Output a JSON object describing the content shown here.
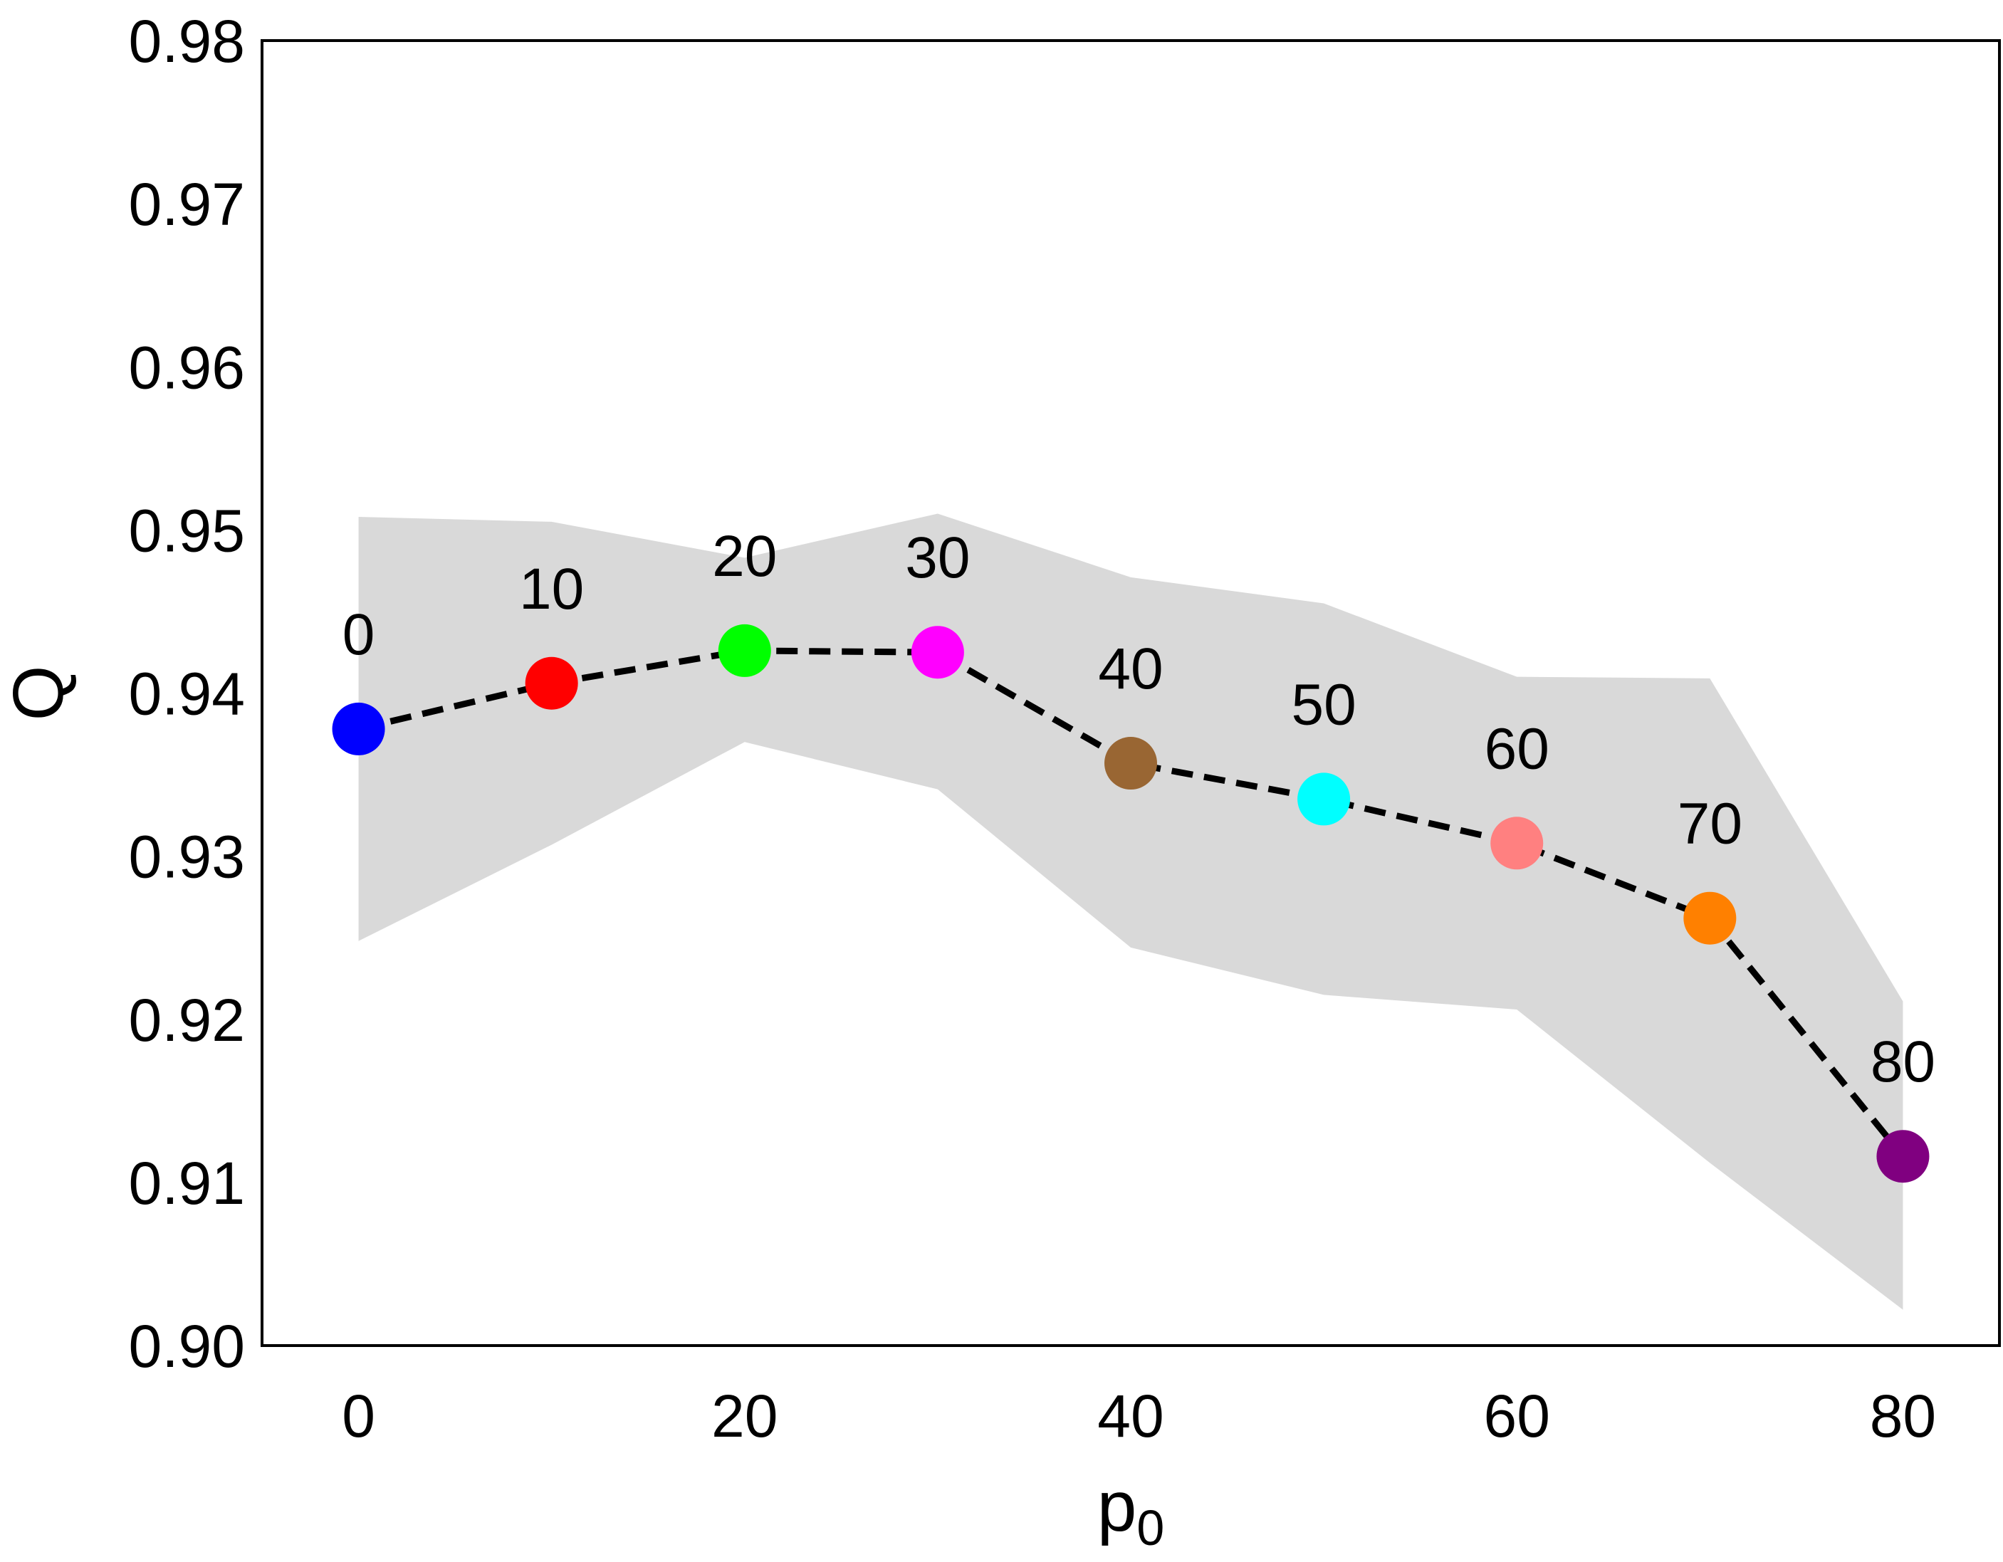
{
  "chart_data": {
    "type": "line",
    "title": "",
    "xlabel": "p",
    "xlabel_subscript": "0",
    "ylabel": "Q",
    "xlim": [
      -5,
      85
    ],
    "ylim": [
      0.9,
      0.98
    ],
    "xticks": [
      0,
      20,
      40,
      60,
      80
    ],
    "xtick_labels": [
      "0",
      "20",
      "40",
      "60",
      "80"
    ],
    "yticks": [
      0.9,
      0.91,
      0.92,
      0.93,
      0.94,
      0.95,
      0.96,
      0.97,
      0.98
    ],
    "ytick_labels": [
      "0.90",
      "0.91",
      "0.92",
      "0.93",
      "0.94",
      "0.95",
      "0.96",
      "0.97",
      "0.98"
    ],
    "grid": false,
    "legend": "none",
    "line_style": "dashed",
    "line_color": "#000000",
    "band_color": "#d9d9d9",
    "series": [
      {
        "x": [
          0,
          10,
          20,
          30,
          40,
          50,
          60,
          70,
          80
        ],
        "y": [
          0.9378,
          0.9406,
          0.9426,
          0.9425,
          0.9357,
          0.9335,
          0.9308,
          0.9262,
          0.9116
        ],
        "upper": [
          0.9508,
          0.9505,
          0.9483,
          0.951,
          0.9471,
          0.9455,
          0.941,
          0.9409,
          0.9211
        ],
        "lower": [
          0.9248,
          0.9307,
          0.937,
          0.9341,
          0.9244,
          0.9215,
          0.9206,
          0.9112,
          0.9022
        ],
        "point_labels": [
          "0",
          "10",
          "20",
          "30",
          "40",
          "50",
          "60",
          "70",
          "80"
        ],
        "point_colors": [
          "#0000ff",
          "#ff0000",
          "#00ff00",
          "#ff00ff",
          "#996633",
          "#00ffff",
          "#ff8080",
          "#ff8000",
          "#800080"
        ]
      }
    ]
  }
}
